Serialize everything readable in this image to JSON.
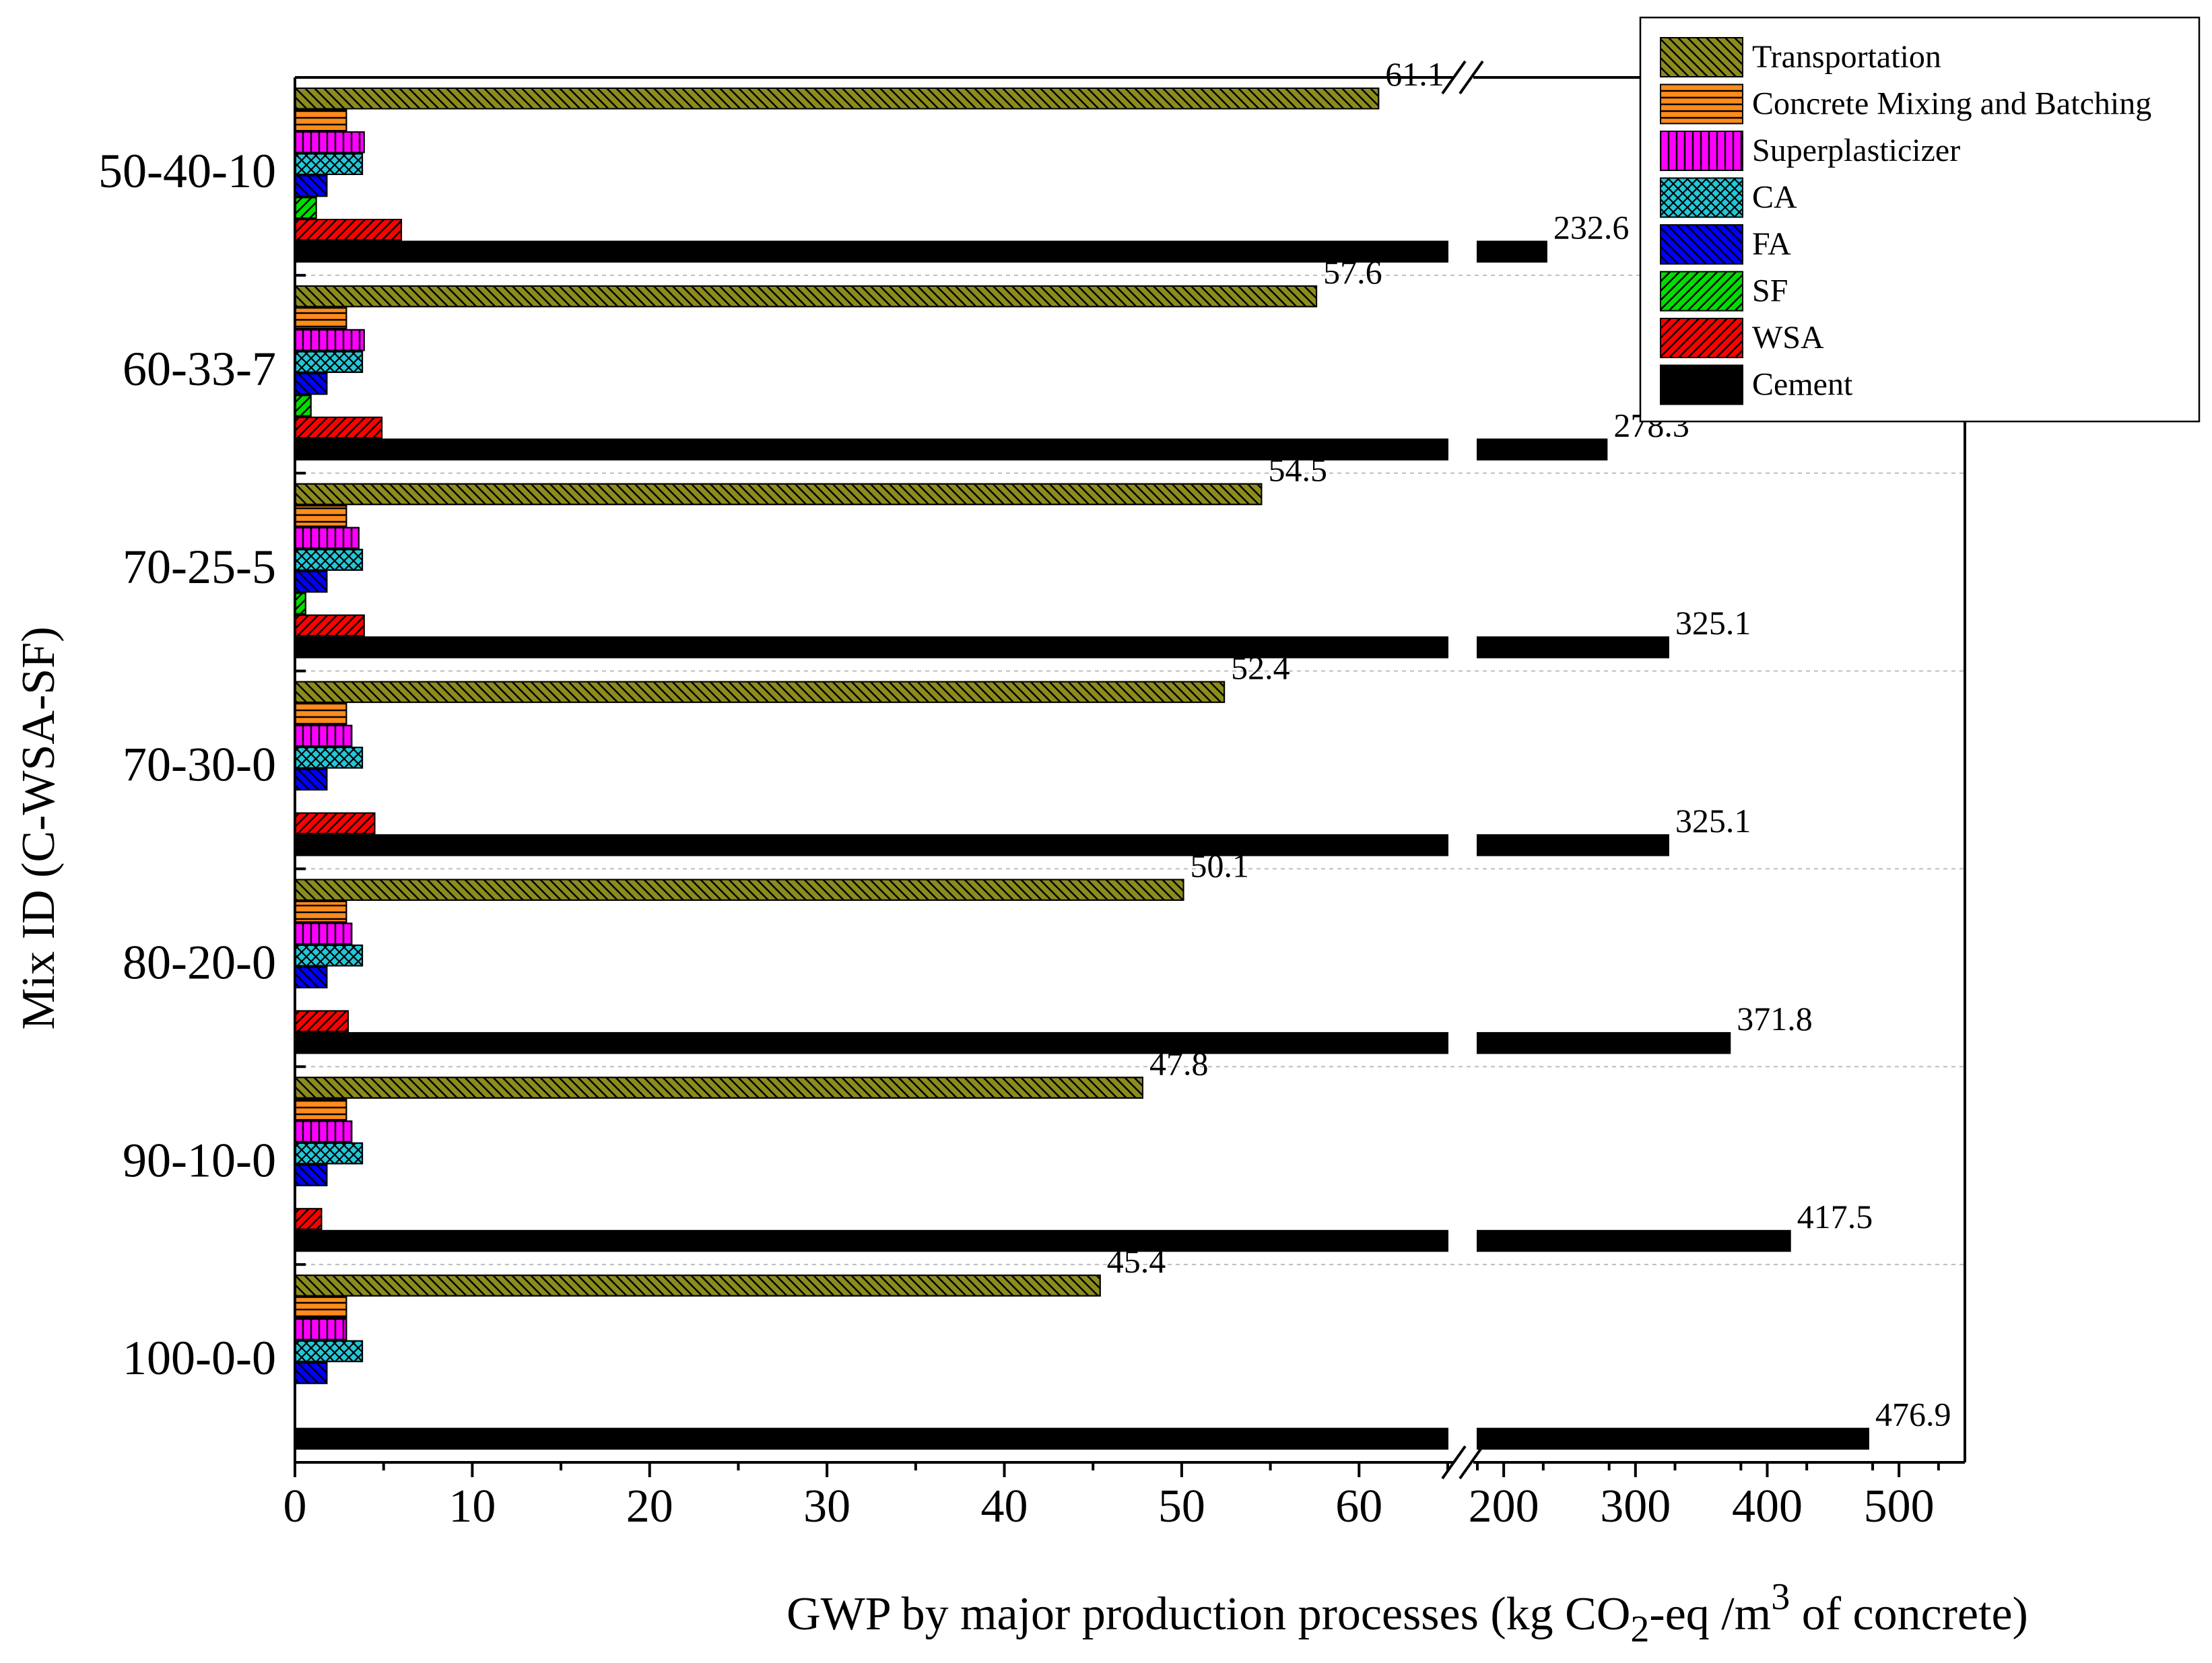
{
  "chart_data": {
    "type": "bar",
    "orientation": "horizontal",
    "xlabel": {
      "prefix": "GWP by major production processes (kg CO",
      "subscript": "2",
      "middle": "-eq  /m",
      "superscript": "3",
      "suffix": " of concrete)"
    },
    "ylabel": "Mix ID (C-WSA-SF)",
    "categories": [
      "50-40-10",
      "60-33-7",
      "70-25-5",
      "70-30-0",
      "80-20-0",
      "90-10-0",
      "100-0-0"
    ],
    "x_axis_segments": [
      {
        "range": [
          0,
          65
        ],
        "ticks": [
          "0",
          "10",
          "20",
          "30",
          "40",
          "50",
          "60"
        ],
        "tick_values": [
          0,
          10,
          20,
          30,
          40,
          50,
          60
        ]
      },
      {
        "range": [
          180,
          550
        ],
        "ticks": [
          "200",
          "300",
          "400",
          "500"
        ],
        "tick_values": [
          200,
          300,
          400,
          500
        ]
      }
    ],
    "axis_break": "between 65 and 180",
    "series": [
      {
        "name": "Transportation",
        "color": "#8c8c1e",
        "pattern": "diag-back",
        "values": [
          61.1,
          57.6,
          54.5,
          52.4,
          50.1,
          47.8,
          45.4
        ],
        "labels": [
          "61.1",
          "57.6",
          "54.5",
          "52.4",
          "50.1",
          "47.8",
          "45.4"
        ]
      },
      {
        "name": "Concrete Mixing and Batching",
        "color": "#ff8c1a",
        "pattern": "horizontal",
        "values": [
          2.9,
          2.9,
          2.9,
          2.9,
          2.9,
          2.9,
          2.9
        ]
      },
      {
        "name": "Superplasticizer",
        "color": "#ff00ff",
        "pattern": "vertical",
        "values": [
          3.9,
          3.9,
          3.6,
          3.2,
          3.2,
          3.2,
          2.9
        ]
      },
      {
        "name": "CA",
        "color": "#22c8d8",
        "pattern": "cross",
        "values": [
          3.8,
          3.8,
          3.8,
          3.8,
          3.8,
          3.8,
          3.8
        ]
      },
      {
        "name": "FA",
        "color": "#0000ff",
        "pattern": "diag-back",
        "values": [
          1.8,
          1.8,
          1.8,
          1.8,
          1.8,
          1.8,
          1.8
        ]
      },
      {
        "name": "SF",
        "color": "#00dd00",
        "pattern": "diag-fwd",
        "values": [
          1.2,
          0.9,
          0.6,
          0,
          0,
          0,
          0
        ]
      },
      {
        "name": "WSA",
        "color": "#ff0000",
        "pattern": "diag-fwd",
        "values": [
          6.0,
          4.9,
          3.9,
          4.5,
          3.0,
          1.5,
          0
        ]
      },
      {
        "name": "Cement",
        "color": "#000000",
        "pattern": "solid",
        "values": [
          232.6,
          278.3,
          325.1,
          325.1,
          371.8,
          417.5,
          476.9
        ],
        "labels": [
          "232.6",
          "278.3",
          "325.1",
          "325.1",
          "371.8",
          "417.5",
          "476.9"
        ]
      }
    ],
    "legend": {
      "position": "top-right"
    }
  }
}
